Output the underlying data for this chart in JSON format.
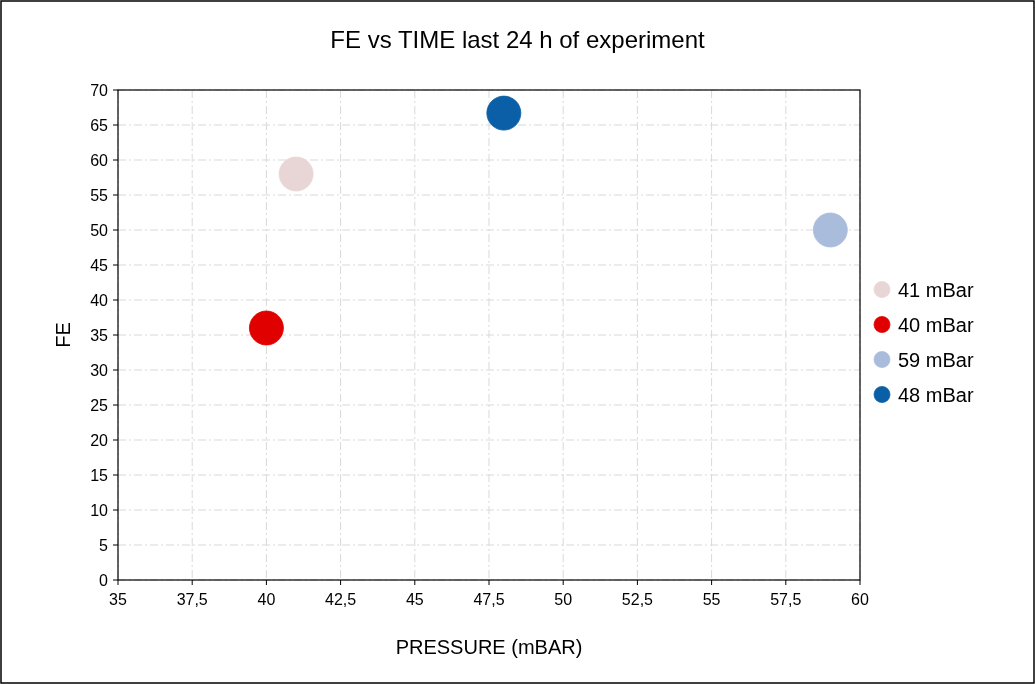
{
  "chart_data": {
    "type": "scatter",
    "title": "FE vs TIME last 24 h of experiment",
    "xlabel": "PRESSURE (mBAR)",
    "ylabel": "FE",
    "series": [
      {
        "name": "41 mBar",
        "color": "#e8d6d6",
        "x": [
          41
        ],
        "values": [
          58
        ]
      },
      {
        "name": "40 mBar",
        "color": "#e00000",
        "x": [
          40
        ],
        "values": [
          36
        ]
      },
      {
        "name": "59 mBar",
        "color": "#a9bcdc",
        "x": [
          59
        ],
        "values": [
          50
        ]
      },
      {
        "name": "48 mBar",
        "color": "#0a5fa6",
        "x": [
          48
        ],
        "values": [
          66.7
        ]
      }
    ],
    "xlim": [
      35,
      60
    ],
    "xticks": [
      35,
      {
        "value": 37.5,
        "label": "37,5"
      },
      40,
      {
        "value": 42.5,
        "label": "42,5"
      },
      45,
      {
        "value": 47.5,
        "label": "47,5"
      },
      50,
      {
        "value": 52.5,
        "label": "52,5"
      },
      55,
      {
        "value": 57.5,
        "label": "57,5"
      },
      60
    ],
    "ylim": [
      0,
      70
    ],
    "yticks": [
      0,
      5,
      10,
      15,
      20,
      25,
      30,
      35,
      40,
      45,
      50,
      55,
      60,
      65,
      70
    ],
    "grid": true,
    "legend": "right",
    "marker": "circle"
  }
}
